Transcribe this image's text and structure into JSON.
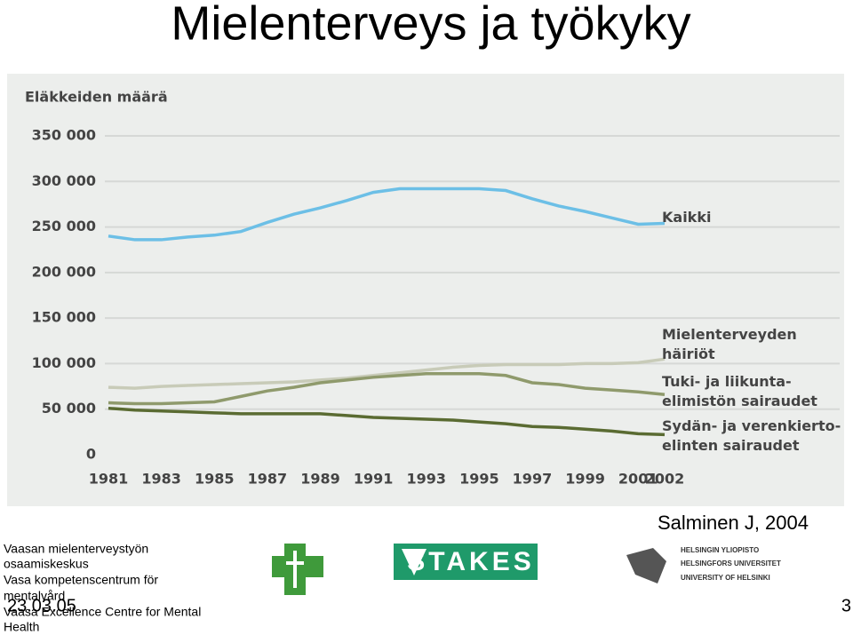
{
  "slide": {
    "title": "Mielenterveys ja työkyky",
    "source": "Salminen J, 2004",
    "footer": [
      "Vaasan mielenterveystyön",
      "osaamiskeskus",
      "Vasa kompetenscentrum för",
      "mentalvård",
      "Vaasa Excellence Centre for Mental",
      "Health"
    ],
    "date": "23.03.05",
    "page": "3",
    "stakes_logo": "STAKES",
    "university_logo": [
      "HELSINGIN YLIOPISTO",
      "HELSINGFORS UNIVERSITET",
      "UNIVERSITY OF HELSINKI"
    ]
  },
  "chart_data": {
    "type": "line",
    "title": "Eläkkeiden määrä",
    "x": [
      1981,
      1982,
      1983,
      1984,
      1985,
      1986,
      1987,
      1988,
      1989,
      1990,
      1991,
      1992,
      1993,
      1994,
      1995,
      1996,
      1997,
      1998,
      1999,
      2000,
      2001,
      2002
    ],
    "xlim": [
      1981,
      2002
    ],
    "xticks": [
      1981,
      1983,
      1985,
      1987,
      1989,
      1991,
      1993,
      1995,
      1997,
      1999,
      2001,
      2002
    ],
    "ylim": [
      0,
      350000
    ],
    "yticks": [
      0,
      {
        "value": 50000,
        "label": "50 000"
      },
      {
        "value": 100000,
        "label": "100 000"
      },
      {
        "value": 150000,
        "label": "150 000"
      },
      {
        "value": 200000,
        "label": "200 000"
      },
      {
        "value": 250000,
        "label": "250 000"
      },
      {
        "value": 300000,
        "label": "300 000"
      },
      {
        "value": 350000,
        "label": "350 000"
      }
    ],
    "grid": true,
    "series": [
      {
        "name": "Kaikki",
        "color": "#6cbfe6",
        "values": [
          240000,
          236000,
          236000,
          239000,
          241000,
          245000,
          255000,
          264000,
          271000,
          279000,
          288000,
          292000,
          292000,
          292000,
          292000,
          290000,
          281000,
          273000,
          267000,
          260000,
          253000,
          254000
        ]
      },
      {
        "name": "Mielenterveyden\nhäiriöt",
        "color": "#c8cbb8",
        "values": [
          74000,
          73000,
          75000,
          76000,
          77000,
          78000,
          79000,
          80000,
          82000,
          84000,
          87000,
          90000,
          93000,
          96000,
          98000,
          99000,
          99000,
          99000,
          100000,
          100000,
          101000,
          105000
        ]
      },
      {
        "name": "Tuki- ja liikunta-\nelimistön sairaudet",
        "color": "#8f9a6c",
        "values": [
          57000,
          56000,
          56000,
          57000,
          58000,
          64000,
          70000,
          74000,
          79000,
          82000,
          85000,
          87000,
          89000,
          89000,
          89000,
          87000,
          79000,
          77000,
          73000,
          71000,
          69000,
          66000
        ]
      },
      {
        "name": "Sydän- ja verenkierto-\nelinten sairaudet",
        "color": "#5a6b32",
        "values": [
          51000,
          49000,
          48000,
          47000,
          46000,
          45000,
          45000,
          45000,
          45000,
          43000,
          41000,
          40000,
          39000,
          38000,
          36000,
          34000,
          31000,
          30000,
          28000,
          26000,
          23000,
          22000
        ]
      }
    ]
  }
}
